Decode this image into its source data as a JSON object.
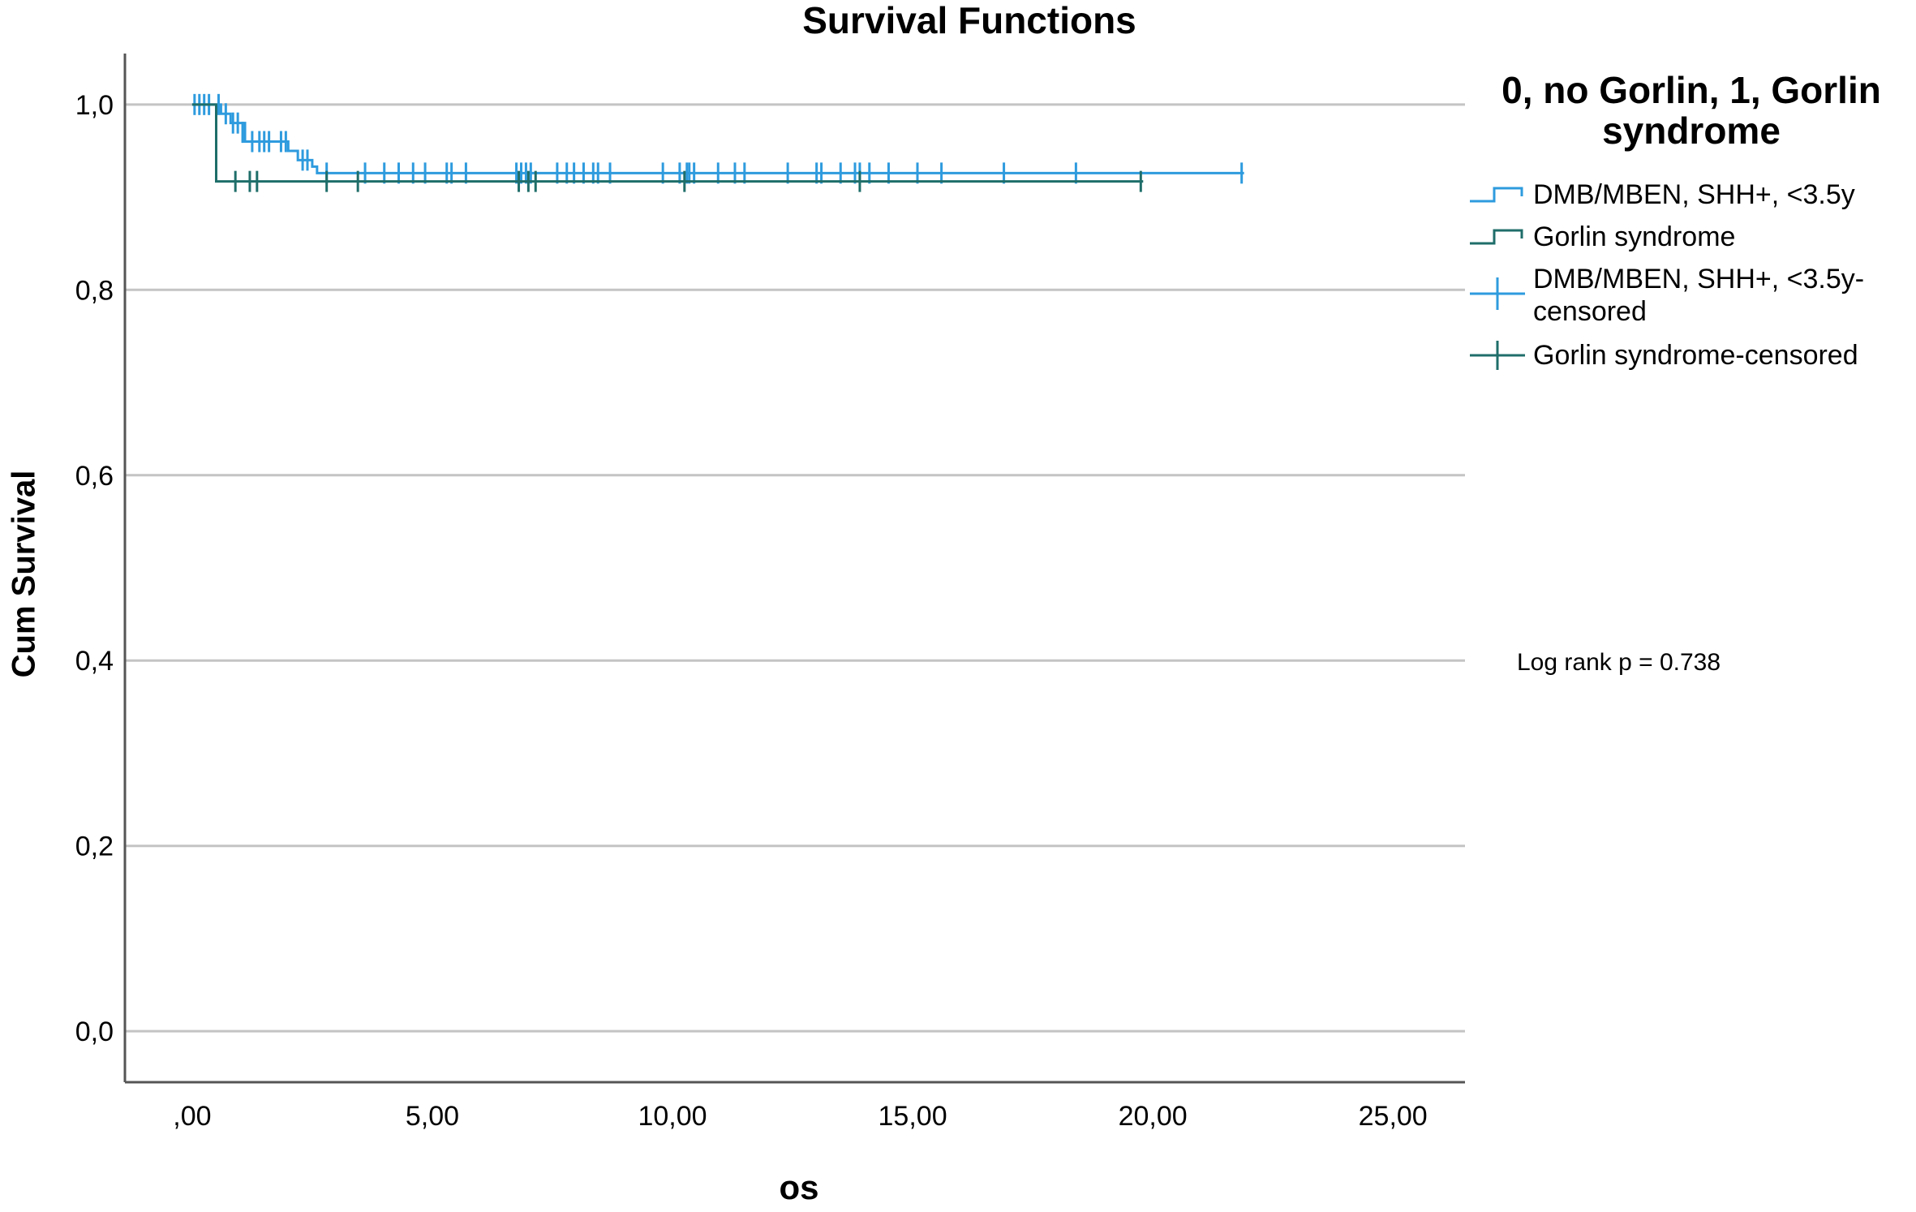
{
  "chart_data": {
    "type": "line",
    "title": "Survival Functions",
    "xlabel": "os",
    "ylabel": "Cum Survival",
    "xlim": [
      -1.4,
      26.5
    ],
    "ylim": [
      -0.055,
      1.055
    ],
    "x_ticks": [
      0,
      5,
      10,
      15,
      20,
      25
    ],
    "x_tick_labels": [
      ",00",
      "5,00",
      "10,00",
      "15,00",
      "20,00",
      "25,00"
    ],
    "y_ticks": [
      0,
      0.2,
      0.4,
      0.6,
      0.8,
      1.0
    ],
    "y_tick_labels": [
      "0,0",
      "0,2",
      "0,4",
      "0,6",
      "0,8",
      "1,0"
    ],
    "grid": "horizontal",
    "legend": {
      "title": "0, no Gorlin, 1, Gorlin syndrome",
      "position": "right",
      "entries": [
        {
          "label": "DMB/MBEN, SHH+, <3.5y",
          "symbol": "step",
          "color": "#2E9BDE"
        },
        {
          "label": "Gorlin syndrome",
          "symbol": "step",
          "color": "#1F6E6A"
        },
        {
          "label": "DMB/MBEN, SHH+, <3.5y-censored",
          "symbol": "cross",
          "color": "#2E9BDE"
        },
        {
          "label": "Gorlin syndrome-censored",
          "symbol": "cross",
          "color": "#1F6E6A"
        }
      ]
    },
    "annotation": "Log rank p = 0.738",
    "series": [
      {
        "name": "DMB/MBEN, SHH+, <3.5y",
        "color": "#2E9BDE",
        "steps": [
          [
            0,
            1.0
          ],
          [
            0.6,
            0.99
          ],
          [
            0.8,
            0.98
          ],
          [
            1.1,
            0.96
          ],
          [
            2.0,
            0.95
          ],
          [
            2.2,
            0.94
          ],
          [
            2.5,
            0.933
          ],
          [
            2.6,
            0.926
          ],
          [
            21.9,
            0.926
          ]
        ],
        "censored": [
          [
            0.05,
            1.0
          ],
          [
            0.15,
            1.0
          ],
          [
            0.25,
            1.0
          ],
          [
            0.35,
            1.0
          ],
          [
            0.55,
            1.0
          ],
          [
            0.7,
            0.99
          ],
          [
            0.85,
            0.98
          ],
          [
            0.95,
            0.98
          ],
          [
            1.05,
            0.97
          ],
          [
            1.25,
            0.96
          ],
          [
            1.4,
            0.96
          ],
          [
            1.5,
            0.96
          ],
          [
            1.6,
            0.96
          ],
          [
            1.85,
            0.96
          ],
          [
            1.95,
            0.96
          ],
          [
            2.3,
            0.94
          ],
          [
            2.4,
            0.94
          ],
          [
            2.8,
            0.926
          ],
          [
            3.6,
            0.926
          ],
          [
            4.0,
            0.926
          ],
          [
            4.3,
            0.926
          ],
          [
            4.6,
            0.926
          ],
          [
            4.85,
            0.926
          ],
          [
            5.3,
            0.926
          ],
          [
            5.4,
            0.926
          ],
          [
            5.7,
            0.926
          ],
          [
            6.75,
            0.926
          ],
          [
            6.85,
            0.926
          ],
          [
            6.95,
            0.926
          ],
          [
            7.05,
            0.926
          ],
          [
            7.6,
            0.926
          ],
          [
            7.8,
            0.926
          ],
          [
            7.95,
            0.926
          ],
          [
            8.15,
            0.926
          ],
          [
            8.35,
            0.926
          ],
          [
            8.45,
            0.926
          ],
          [
            8.7,
            0.926
          ],
          [
            9.8,
            0.926
          ],
          [
            10.15,
            0.926
          ],
          [
            10.3,
            0.926
          ],
          [
            10.35,
            0.926
          ],
          [
            10.45,
            0.926
          ],
          [
            10.95,
            0.926
          ],
          [
            11.3,
            0.926
          ],
          [
            11.5,
            0.926
          ],
          [
            12.4,
            0.926
          ],
          [
            13.0,
            0.926
          ],
          [
            13.1,
            0.926
          ],
          [
            13.5,
            0.926
          ],
          [
            13.8,
            0.926
          ],
          [
            13.9,
            0.926
          ],
          [
            14.1,
            0.926
          ],
          [
            14.5,
            0.926
          ],
          [
            15.1,
            0.926
          ],
          [
            15.6,
            0.926
          ],
          [
            16.9,
            0.926
          ],
          [
            18.4,
            0.926
          ],
          [
            21.85,
            0.926
          ]
        ]
      },
      {
        "name": "Gorlin syndrome",
        "color": "#1F6E6A",
        "steps": [
          [
            0,
            1.0
          ],
          [
            0.5,
            0.917
          ],
          [
            19.8,
            0.917
          ]
        ],
        "censored": [
          [
            0.9,
            0.917
          ],
          [
            1.2,
            0.917
          ],
          [
            1.35,
            0.917
          ],
          [
            2.8,
            0.917
          ],
          [
            3.45,
            0.917
          ],
          [
            6.8,
            0.917
          ],
          [
            7.0,
            0.917
          ],
          [
            7.15,
            0.917
          ],
          [
            10.25,
            0.917
          ],
          [
            13.9,
            0.917
          ],
          [
            19.75,
            0.917
          ]
        ]
      }
    ]
  }
}
